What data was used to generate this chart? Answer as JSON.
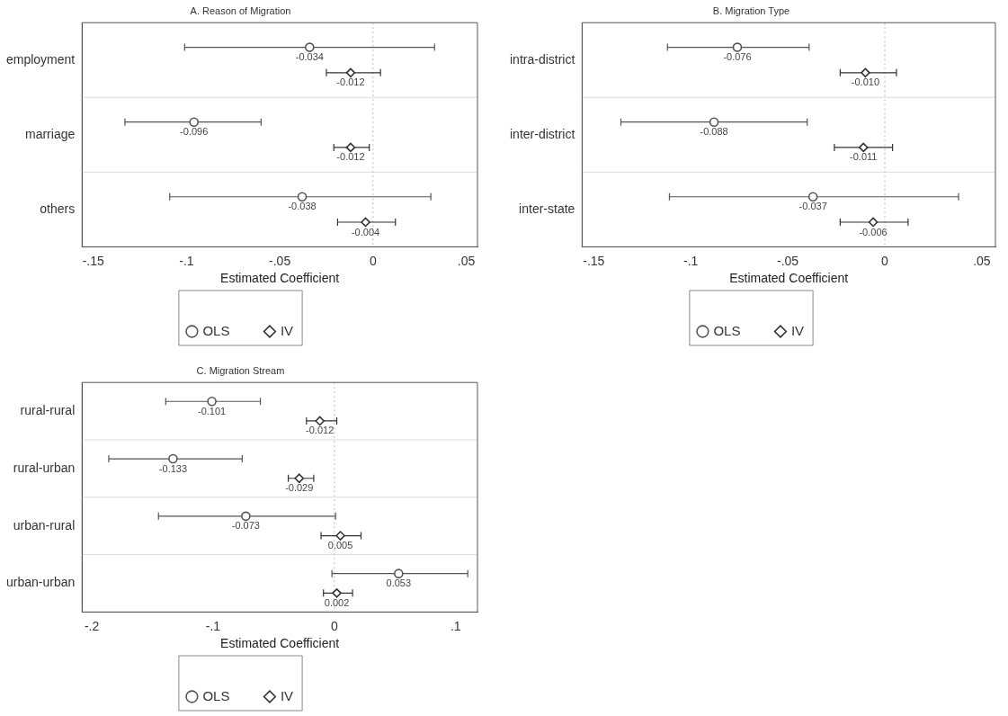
{
  "chart_data": [
    {
      "type": "scatter",
      "orientation": "horizontal",
      "title": "A. Reason of Migration",
      "xlabel": "Estimated Coefficient",
      "categories": [
        "employment",
        "marriage",
        "others"
      ],
      "xlim": [
        -0.156,
        0.056
      ],
      "xticks": [
        {
          "value": -0.15,
          "label": "-.15"
        },
        {
          "value": -0.1,
          "label": "-.1"
        },
        {
          "value": -0.05,
          "label": "-.05"
        },
        {
          "value": 0,
          "label": "0"
        },
        {
          "value": 0.05,
          "label": ".05"
        }
      ],
      "grid": "y",
      "legend": "bottom",
      "ref_lines": [
        {
          "axis": "x",
          "value": 0,
          "line_style": "dotted",
          "color": "#bbbbbb"
        }
      ],
      "series": [
        {
          "name": "OLS",
          "color": "#555555",
          "marker": "circle",
          "values": [
            -0.034,
            -0.096,
            -0.038
          ],
          "errors": [
            [
              -0.101,
              0.033
            ],
            [
              -0.133,
              -0.06
            ],
            [
              -0.109,
              0.031
            ]
          ],
          "value_labels": [
            "-0.034",
            "-0.096",
            "-0.038"
          ]
        },
        {
          "name": "IV",
          "color": "#333333",
          "marker": "diamond",
          "values": [
            -0.012,
            -0.012,
            -0.004
          ],
          "errors": [
            [
              -0.025,
              0.004
            ],
            [
              -0.021,
              -0.002
            ],
            [
              -0.019,
              0.012
            ]
          ],
          "value_labels": [
            "-0.012",
            "-0.012",
            "-0.004"
          ]
        }
      ]
    },
    {
      "type": "scatter",
      "orientation": "horizontal",
      "title": "B. Migration Type",
      "xlabel": "Estimated Coefficient",
      "categories": [
        "intra-district",
        "inter-district",
        "inter-state"
      ],
      "xlim": [
        -0.156,
        0.057
      ],
      "xticks": [
        {
          "value": -0.15,
          "label": "-.15"
        },
        {
          "value": -0.1,
          "label": "-.1"
        },
        {
          "value": -0.05,
          "label": "-.05"
        },
        {
          "value": 0,
          "label": "0"
        },
        {
          "value": 0.05,
          "label": ".05"
        }
      ],
      "grid": "y",
      "legend": "bottom",
      "ref_lines": [
        {
          "axis": "x",
          "value": 0,
          "line_style": "dotted",
          "color": "#bbbbbb"
        }
      ],
      "series": [
        {
          "name": "OLS",
          "color": "#555555",
          "marker": "circle",
          "values": [
            -0.076,
            -0.088,
            -0.037
          ],
          "errors": [
            [
              -0.112,
              -0.039
            ],
            [
              -0.136,
              -0.04
            ],
            [
              -0.111,
              0.038
            ]
          ],
          "value_labels": [
            "-0.076",
            "-0.088",
            "-0.037"
          ]
        },
        {
          "name": "IV",
          "color": "#333333",
          "marker": "diamond",
          "values": [
            -0.01,
            -0.011,
            -0.006
          ],
          "errors": [
            [
              -0.023,
              0.006
            ],
            [
              -0.026,
              0.004
            ],
            [
              -0.023,
              0.012
            ]
          ],
          "value_labels": [
            "-0.010",
            "-0.011",
            "-0.006"
          ]
        }
      ]
    },
    {
      "type": "scatter",
      "orientation": "horizontal",
      "title": "C. Migration Stream",
      "xlabel": "Estimated Coefficient",
      "categories": [
        "rural-rural",
        "rural-urban",
        "urban-rural",
        "urban-urban"
      ],
      "xlim": [
        -0.208,
        0.118
      ],
      "xticks": [
        {
          "value": -0.2,
          "label": "-.2"
        },
        {
          "value": -0.1,
          "label": "-.1"
        },
        {
          "value": 0,
          "label": "0"
        },
        {
          "value": 0.1,
          "label": ".1"
        }
      ],
      "grid": "y",
      "legend": "bottom",
      "ref_lines": [
        {
          "axis": "x",
          "value": 0,
          "line_style": "dotted",
          "color": "#bbbbbb"
        }
      ],
      "series": [
        {
          "name": "OLS",
          "color": "#555555",
          "marker": "circle",
          "values": [
            -0.101,
            -0.133,
            -0.073,
            0.053
          ],
          "errors": [
            [
              -0.139,
              -0.061
            ],
            [
              -0.186,
              -0.076
            ],
            [
              -0.145,
              0.001
            ],
            [
              -0.002,
              0.11
            ]
          ],
          "value_labels": [
            "-0.101",
            "-0.133",
            "-0.073",
            "0.053"
          ]
        },
        {
          "name": "IV",
          "color": "#333333",
          "marker": "diamond",
          "values": [
            -0.012,
            -0.029,
            0.005,
            0.002
          ],
          "errors": [
            [
              -0.023,
              0.002
            ],
            [
              -0.038,
              -0.017
            ],
            [
              -0.011,
              0.022
            ],
            [
              -0.009,
              0.015
            ]
          ],
          "value_labels": [
            "-0.012",
            "-0.029",
            "0.005",
            "0.002"
          ]
        }
      ]
    }
  ]
}
